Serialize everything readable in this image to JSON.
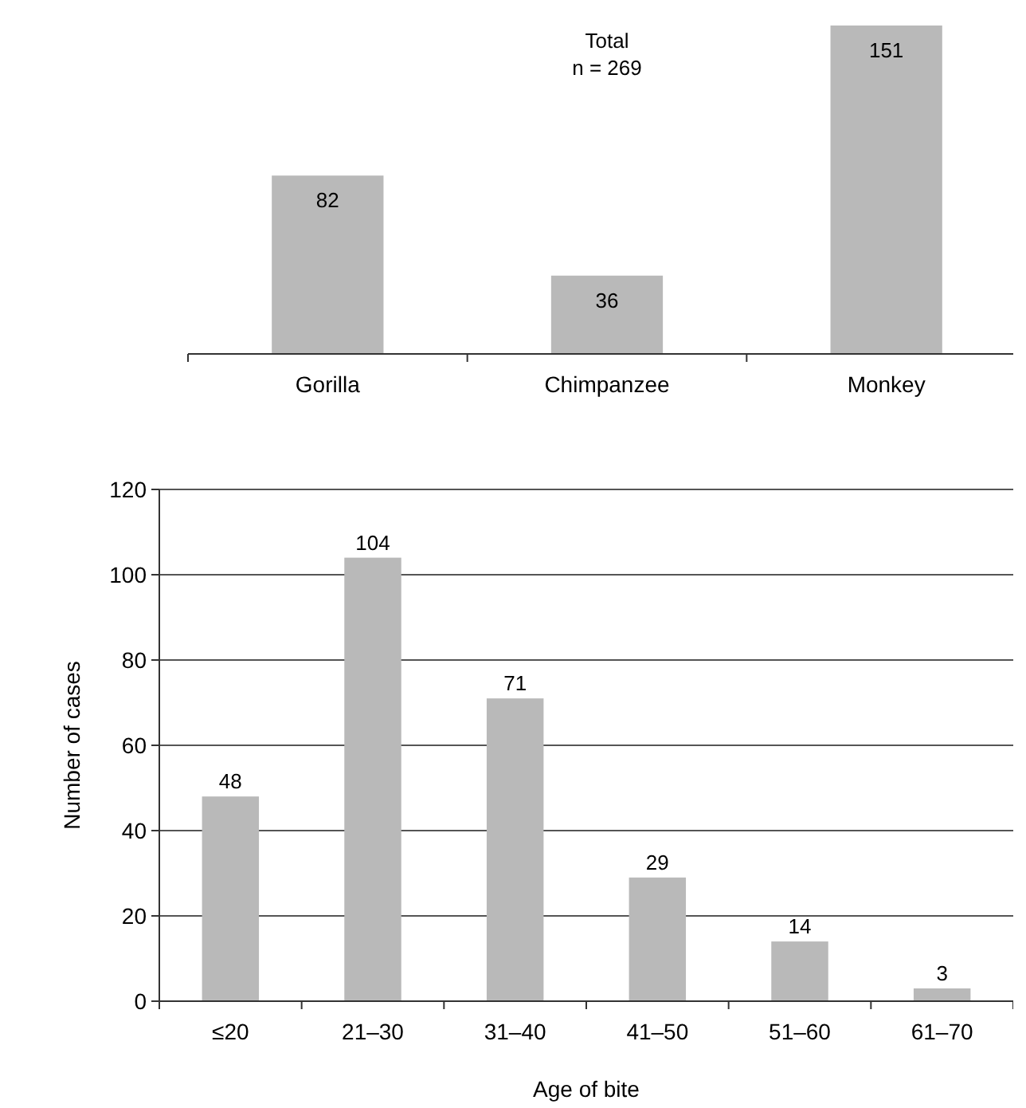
{
  "chart_data": [
    {
      "type": "bar",
      "annotations": [
        "Total\nn = 269"
      ],
      "categories": [
        "Gorilla",
        "Chimpanzee",
        "Monkey"
      ],
      "values": [
        82,
        36,
        151
      ],
      "color": "#b9b9b9",
      "data_labels": true
    },
    {
      "type": "bar",
      "xlabel": "Age of bite",
      "ylabel": "Number of cases",
      "categories": [
        "≤20",
        "21–30",
        "31–40",
        "41–50",
        "51–60",
        "61–70"
      ],
      "values": [
        48,
        104,
        71,
        29,
        14,
        3
      ],
      "color": "#b9b9b9",
      "ylim": [
        0,
        120
      ],
      "yticks": [
        0,
        20,
        40,
        60,
        80,
        100,
        120
      ],
      "grid": "y",
      "data_labels": true
    }
  ]
}
